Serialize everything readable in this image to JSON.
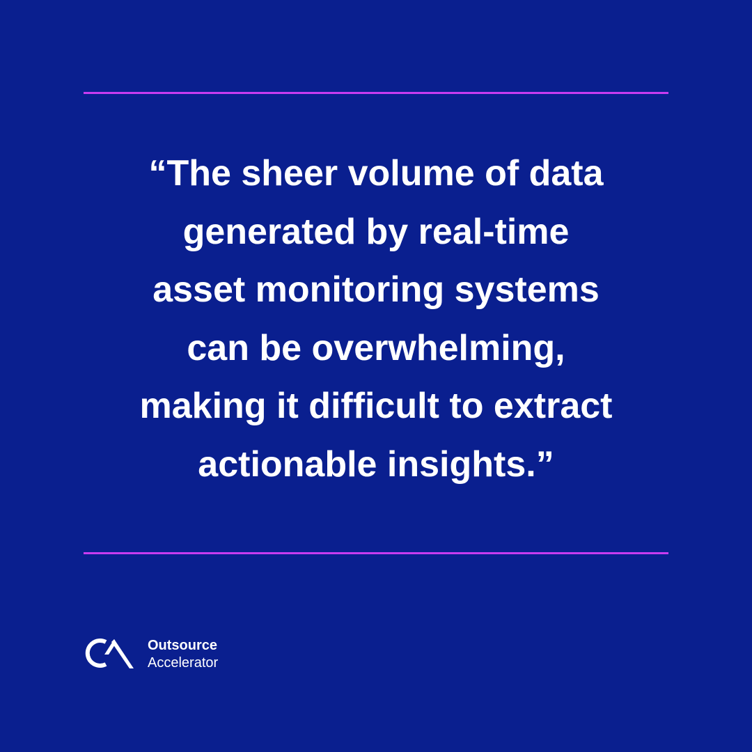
{
  "quote": {
    "lines": [
      "“The sheer volume of data",
      "generated by real-time",
      "asset monitoring systems",
      "can be overwhelming,",
      "making it difficult to extract",
      "actionable insights.”"
    ]
  },
  "logo": {
    "line1": "Outsource",
    "line2": "Accelerator"
  }
}
